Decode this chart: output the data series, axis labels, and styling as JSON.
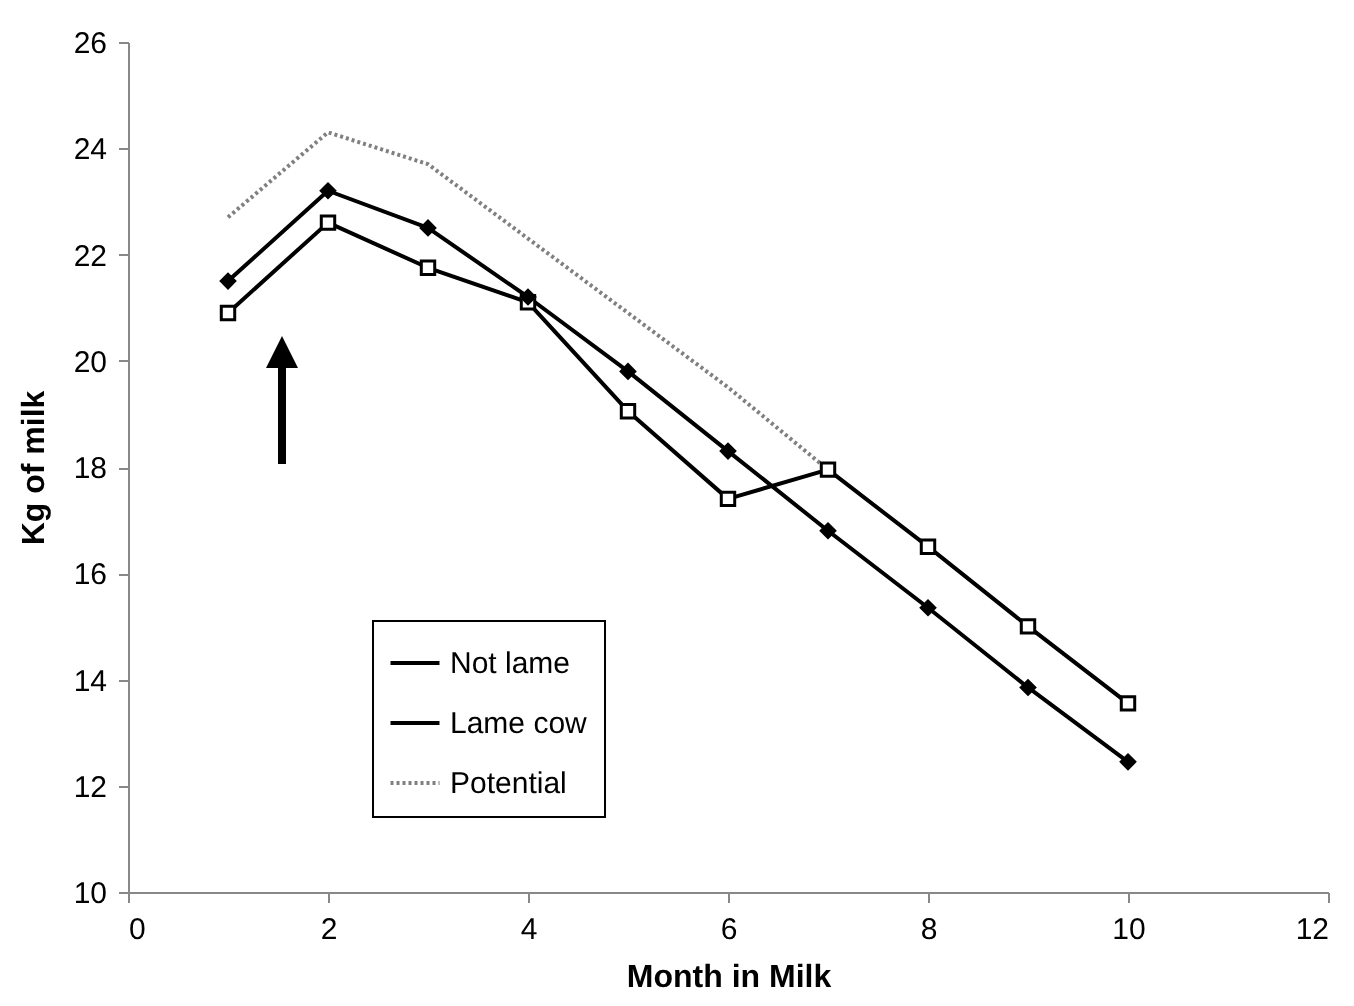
{
  "chart_data": {
    "type": "line",
    "xlabel": "Month in Milk",
    "ylabel": "Kg of milk",
    "x": [
      1,
      2,
      3,
      4,
      5,
      6,
      7,
      8,
      9,
      10
    ],
    "series": [
      {
        "name": "Not lame",
        "color": "#000000",
        "marker": "diamond",
        "line_style": "solid",
        "values": [
          21.5,
          23.2,
          22.5,
          21.2,
          19.8,
          18.3,
          16.8,
          15.35,
          13.85,
          12.45
        ]
      },
      {
        "name": "Lame cow",
        "color": "#000000",
        "marker": "square",
        "line_style": "solid",
        "values": [
          20.9,
          22.6,
          21.75,
          21.1,
          19.05,
          17.4,
          17.95,
          16.5,
          15.0,
          13.55
        ]
      },
      {
        "name": "Potential",
        "color": "#808080",
        "marker": "none",
        "line_style": "dotted",
        "values": [
          22.7,
          24.3,
          23.7,
          22.3,
          20.9,
          19.5,
          17.95,
          null,
          null,
          null
        ]
      }
    ],
    "xlim": [
      0,
      12
    ],
    "xticks": [
      0,
      2,
      4,
      6,
      8,
      10,
      12
    ],
    "ylim": [
      10,
      26
    ],
    "yticks": [
      10,
      12,
      14,
      16,
      18,
      20,
      22,
      24,
      26
    ],
    "grid": false,
    "legend": "bottom left"
  }
}
